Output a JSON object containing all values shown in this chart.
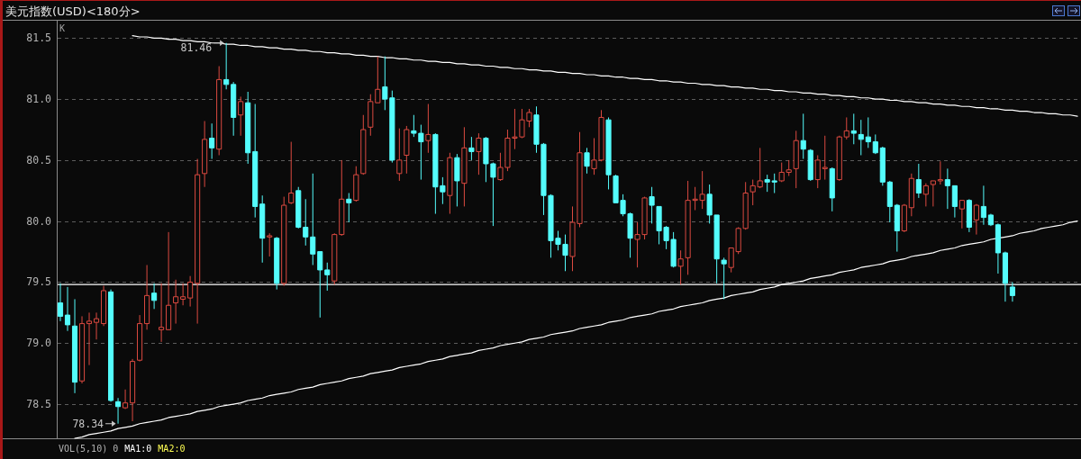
{
  "chart_data": {
    "type": "candlestick",
    "title": "美元指数(USD)<180分>",
    "annotations": [
      "K",
      {
        "text": "81.46",
        "y": 81.46
      },
      "78.34",
      "VOL(5,10) 0",
      "MA1:0",
      "MA2:0"
    ],
    "categories": [
      null,
      null,
      null,
      null,
      null,
      null,
      null,
      null,
      null,
      null,
      null,
      null,
      null,
      null,
      null,
      null,
      null,
      null,
      null,
      null,
      null,
      null,
      null,
      null,
      null,
      null,
      null,
      null,
      null,
      null,
      null,
      null,
      null,
      null,
      null,
      null,
      null,
      null,
      null,
      null,
      null,
      null,
      null,
      null,
      null,
      null,
      null,
      null,
      null,
      null,
      null,
      null,
      null,
      null,
      null,
      null,
      null,
      null,
      null,
      null,
      null,
      null,
      null,
      null,
      null,
      null,
      null,
      null,
      null,
      null,
      null,
      null,
      null,
      null,
      null,
      null,
      null,
      null,
      null,
      null,
      null,
      null,
      null,
      null,
      null,
      null,
      null,
      null,
      null,
      null,
      null,
      null,
      null,
      null,
      null,
      null,
      null,
      null,
      null,
      null,
      null,
      null,
      null,
      null,
      null,
      null,
      null,
      null,
      null,
      null,
      null,
      null,
      null,
      null,
      null,
      null,
      null,
      null,
      null,
      null,
      null,
      null,
      null,
      null,
      null,
      null,
      null,
      null,
      null,
      null,
      null,
      null,
      null,
      null,
      null,
      null,
      null,
      null,
      null,
      null,
      null,
      null
    ],
    "ohlc": [
      [
        79.33,
        79.49,
        79.18,
        79.22
      ],
      [
        79.23,
        79.46,
        79.1,
        79.15
      ],
      [
        79.14,
        79.36,
        78.59,
        78.68
      ],
      [
        78.69,
        79.22,
        78.67,
        79.16
      ],
      [
        79.16,
        79.25,
        78.82,
        79.18
      ],
      [
        79.17,
        79.25,
        79.03,
        79.2
      ],
      [
        79.16,
        79.47,
        79.14,
        79.43
      ],
      [
        79.42,
        79.44,
        78.52,
        78.53
      ],
      [
        78.52,
        78.55,
        78.34,
        78.48
      ],
      [
        78.47,
        78.62,
        78.46,
        78.51
      ],
      [
        78.51,
        78.87,
        78.36,
        78.85
      ],
      [
        78.86,
        79.23,
        78.85,
        79.16
      ],
      [
        79.16,
        79.64,
        79.11,
        79.39
      ],
      [
        79.41,
        79.49,
        79.28,
        79.35
      ],
      [
        79.11,
        79.49,
        79.01,
        79.13
      ],
      [
        79.11,
        79.91,
        79.11,
        79.31
      ],
      [
        79.33,
        79.52,
        79.16,
        79.38
      ],
      [
        79.36,
        79.49,
        79.31,
        79.38
      ],
      [
        79.37,
        79.55,
        79.3,
        79.5
      ],
      [
        79.49,
        80.51,
        79.16,
        80.38
      ],
      [
        80.39,
        80.82,
        80.28,
        80.67
      ],
      [
        80.68,
        80.8,
        80.51,
        80.6
      ],
      [
        80.59,
        81.27,
        80.54,
        81.16
      ],
      [
        81.16,
        81.46,
        81.08,
        81.12
      ],
      [
        81.12,
        81.14,
        80.7,
        80.85
      ],
      [
        80.87,
        81.02,
        80.7,
        80.98
      ],
      [
        80.97,
        81.06,
        80.47,
        80.56
      ],
      [
        80.57,
        80.96,
        80.03,
        80.12
      ],
      [
        80.14,
        80.21,
        79.66,
        79.86
      ],
      [
        79.87,
        79.9,
        79.71,
        79.88
      ],
      [
        79.86,
        79.87,
        79.44,
        79.49
      ],
      [
        79.49,
        80.2,
        79.47,
        80.13
      ],
      [
        80.15,
        80.65,
        80.14,
        80.23
      ],
      [
        80.25,
        80.28,
        79.94,
        79.95
      ],
      [
        79.95,
        80.18,
        79.8,
        79.87
      ],
      [
        79.87,
        80.39,
        79.64,
        79.73
      ],
      [
        79.75,
        79.75,
        79.21,
        79.6
      ],
      [
        79.6,
        79.66,
        79.43,
        79.56
      ],
      [
        79.51,
        79.9,
        79.48,
        79.89
      ],
      [
        79.89,
        80.5,
        79.88,
        80.18
      ],
      [
        80.18,
        80.23,
        79.99,
        80.15
      ],
      [
        80.17,
        80.45,
        80.16,
        80.38
      ],
      [
        80.39,
        80.87,
        80.38,
        80.75
      ],
      [
        80.77,
        81.04,
        80.7,
        80.98
      ],
      [
        80.97,
        81.35,
        80.97,
        81.08
      ],
      [
        81.1,
        81.35,
        80.91,
        81.0
      ],
      [
        81.01,
        81.07,
        80.48,
        80.5
      ],
      [
        80.39,
        80.76,
        80.33,
        80.5
      ],
      [
        80.54,
        80.78,
        80.39,
        80.75
      ],
      [
        80.74,
        80.87,
        80.69,
        80.72
      ],
      [
        80.72,
        80.79,
        80.34,
        80.65
      ],
      [
        80.66,
        80.96,
        80.56,
        80.71
      ],
      [
        80.71,
        80.72,
        80.06,
        80.28
      ],
      [
        80.29,
        80.36,
        80.14,
        80.24
      ],
      [
        80.21,
        80.56,
        80.06,
        80.52
      ],
      [
        80.52,
        80.55,
        80.12,
        80.33
      ],
      [
        80.31,
        80.77,
        80.12,
        80.6
      ],
      [
        80.6,
        80.69,
        80.5,
        80.57
      ],
      [
        80.57,
        80.72,
        80.38,
        80.68
      ],
      [
        80.68,
        80.69,
        80.32,
        80.47
      ],
      [
        80.47,
        80.48,
        79.96,
        80.36
      ],
      [
        80.34,
        80.56,
        80.33,
        80.44
      ],
      [
        80.44,
        80.75,
        80.41,
        80.68
      ],
      [
        80.68,
        80.92,
        80.59,
        80.69
      ],
      [
        80.69,
        80.92,
        80.68,
        80.83
      ],
      [
        80.82,
        80.92,
        80.77,
        80.89
      ],
      [
        80.87,
        80.94,
        80.56,
        80.63
      ],
      [
        80.63,
        80.64,
        80.05,
        80.21
      ],
      [
        80.21,
        80.22,
        79.7,
        79.84
      ],
      [
        79.86,
        79.92,
        79.76,
        79.81
      ],
      [
        79.81,
        79.89,
        79.59,
        79.72
      ],
      [
        79.71,
        80.12,
        79.59,
        79.99
      ],
      [
        79.98,
        80.73,
        79.95,
        80.56
      ],
      [
        80.56,
        80.6,
        80.39,
        80.45
      ],
      [
        80.43,
        80.68,
        80.38,
        80.5
      ],
      [
        80.5,
        80.91,
        80.49,
        80.85
      ],
      [
        80.83,
        80.85,
        80.26,
        80.38
      ],
      [
        80.37,
        80.38,
        80.15,
        80.15
      ],
      [
        80.17,
        80.22,
        80.04,
        80.06
      ],
      [
        80.06,
        80.07,
        79.7,
        79.86
      ],
      [
        79.85,
        79.99,
        79.62,
        79.89
      ],
      [
        79.89,
        80.2,
        79.85,
        80.19
      ],
      [
        80.2,
        80.28,
        79.98,
        80.13
      ],
      [
        80.12,
        80.12,
        79.81,
        79.92
      ],
      [
        79.95,
        79.96,
        79.77,
        79.84
      ],
      [
        79.85,
        79.91,
        79.62,
        79.63
      ],
      [
        79.63,
        79.76,
        79.48,
        79.69
      ],
      [
        79.7,
        80.33,
        79.56,
        80.17
      ],
      [
        80.17,
        80.28,
        80.09,
        80.18
      ],
      [
        80.17,
        80.41,
        80.1,
        80.22
      ],
      [
        80.22,
        80.3,
        79.98,
        80.05
      ],
      [
        80.05,
        80.05,
        79.49,
        79.69
      ],
      [
        79.68,
        79.7,
        79.36,
        79.65
      ],
      [
        79.62,
        79.78,
        79.58,
        79.78
      ],
      [
        79.75,
        79.95,
        79.73,
        79.94
      ],
      [
        79.94,
        80.32,
        79.93,
        80.23
      ],
      [
        80.24,
        80.34,
        80.13,
        80.29
      ],
      [
        80.28,
        80.6,
        80.27,
        80.33
      ],
      [
        80.34,
        80.38,
        80.24,
        80.32
      ],
      [
        80.33,
        80.39,
        80.23,
        80.32
      ],
      [
        80.33,
        80.48,
        80.32,
        80.4
      ],
      [
        80.4,
        80.5,
        80.37,
        80.42
      ],
      [
        80.43,
        80.74,
        80.27,
        80.66
      ],
      [
        80.66,
        80.88,
        80.51,
        80.59
      ],
      [
        80.58,
        80.59,
        80.33,
        80.34
      ],
      [
        80.34,
        80.54,
        80.27,
        80.5
      ],
      [
        80.43,
        80.7,
        80.34,
        80.44
      ],
      [
        80.43,
        80.44,
        80.08,
        80.19
      ],
      [
        80.34,
        80.7,
        80.33,
        80.69
      ],
      [
        80.69,
        80.85,
        80.67,
        80.74
      ],
      [
        80.74,
        80.88,
        80.63,
        80.72
      ],
      [
        80.71,
        80.83,
        80.54,
        80.67
      ],
      [
        80.69,
        80.85,
        80.6,
        80.65
      ],
      [
        80.65,
        80.71,
        80.55,
        80.56
      ],
      [
        80.6,
        80.61,
        80.29,
        80.32
      ],
      [
        80.32,
        80.33,
        79.99,
        80.12
      ],
      [
        80.13,
        80.14,
        79.75,
        79.92
      ],
      [
        79.92,
        80.14,
        79.91,
        80.13
      ],
      [
        80.11,
        80.39,
        80.04,
        80.35
      ],
      [
        80.34,
        80.47,
        80.19,
        80.23
      ],
      [
        80.22,
        80.31,
        80.12,
        80.29
      ],
      [
        80.3,
        80.33,
        80.12,
        80.33
      ],
      [
        80.33,
        80.49,
        80.3,
        80.34
      ],
      [
        80.34,
        80.43,
        80.1,
        80.29
      ],
      [
        80.29,
        80.29,
        80.03,
        80.12
      ],
      [
        80.1,
        80.17,
        79.94,
        80.17
      ],
      [
        80.17,
        80.18,
        79.91,
        79.95
      ],
      [
        80.01,
        80.14,
        79.89,
        80.13
      ],
      [
        80.12,
        80.29,
        79.97,
        80.03
      ],
      [
        80.05,
        80.06,
        79.96,
        79.97
      ],
      [
        79.97,
        79.98,
        79.57,
        79.74
      ],
      [
        79.74,
        79.75,
        79.34,
        79.49
      ],
      [
        79.46,
        79.5,
        79.34,
        79.39
      ],
      null,
      null,
      null,
      null,
      null,
      null,
      null,
      null,
      null
    ],
    "colors": [
      "#54fcfc",
      "#54fcfc",
      "#54fcfc",
      "#dc4a40",
      "#dc4a40",
      "#dc4a40",
      "#dc4a40",
      "#54fcfc",
      "#54fcfc",
      "#dc4a40",
      "#dc4a40",
      "#dc4a40",
      "#dc4a40",
      "#54fcfc",
      "#dc4a40",
      "#dc4a40",
      "#dc4a40",
      "#dc4a40",
      "#dc4a40",
      "#dc4a40",
      "#dc4a40",
      "#54fcfc",
      "#dc4a40",
      "#54fcfc",
      "#54fcfc",
      "#dc4a40",
      "#54fcfc",
      "#54fcfc",
      "#54fcfc",
      "#dc4a40",
      "#54fcfc",
      "#dc4a40",
      "#dc4a40",
      "#54fcfc",
      "#54fcfc",
      "#54fcfc",
      "#54fcfc",
      "#54fcfc",
      "#dc4a40",
      "#dc4a40",
      "#54fcfc",
      "#dc4a40",
      "#dc4a40",
      "#dc4a40",
      "#dc4a40",
      "#54fcfc",
      "#54fcfc",
      "#dc4a40",
      "#dc4a40",
      "#54fcfc",
      "#54fcfc",
      "#dc4a40",
      "#54fcfc",
      "#54fcfc",
      "#dc4a40",
      "#54fcfc",
      "#dc4a40",
      "#54fcfc",
      "#dc4a40",
      "#54fcfc",
      "#54fcfc",
      "#dc4a40",
      "#dc4a40",
      "#dc4a40",
      "#dc4a40",
      "#dc4a40",
      "#54fcfc",
      "#54fcfc",
      "#54fcfc",
      "#54fcfc",
      "#54fcfc",
      "#dc4a40",
      "#dc4a40",
      "#54fcfc",
      "#dc4a40",
      "#dc4a40",
      "#54fcfc",
      "#54fcfc",
      "#54fcfc",
      "#54fcfc",
      "#dc4a40",
      "#dc4a40",
      "#54fcfc",
      "#54fcfc",
      "#54fcfc",
      "#54fcfc",
      "#dc4a40",
      "#dc4a40",
      "#dc4a40",
      "#dc4a40",
      "#54fcfc",
      "#54fcfc",
      "#54fcfc",
      "#dc4a40",
      "#dc4a40",
      "#dc4a40",
      "#dc4a40",
      "#dc4a40",
      "#54fcfc",
      "#54fcfc",
      "#dc4a40",
      "#dc4a40",
      "#dc4a40",
      "#54fcfc",
      "#54fcfc",
      "#dc4a40",
      "#dc4a40",
      "#54fcfc",
      "#dc4a40",
      "#dc4a40",
      "#54fcfc",
      "#54fcfc",
      "#54fcfc",
      "#54fcfc",
      "#54fcfc",
      "#54fcfc",
      "#54fcfc",
      "#dc4a40",
      "#dc4a40",
      "#54fcfc",
      "#dc4a40",
      "#dc4a40",
      "#dc4a40",
      "#54fcfc",
      "#54fcfc",
      "#dc4a40",
      "#54fcfc",
      "#dc4a40",
      "#54fcfc",
      "#54fcfc",
      "#54fcfc",
      "#54fcfc",
      "#54fcfc",
      null,
      null,
      null,
      null,
      null,
      null,
      null,
      null,
      null
    ],
    "series": [
      {
        "type": "line",
        "color": "#ffffff",
        "values": [
          null,
          null,
          null,
          null,
          null,
          null,
          null,
          null,
          null,
          null,
          81.52,
          81.51,
          81.51,
          81.5,
          81.5,
          81.49,
          81.49,
          81.48,
          81.48,
          81.47,
          81.47,
          81.46,
          81.46,
          81.45,
          81.45,
          81.44,
          81.44,
          81.43,
          81.43,
          81.42,
          81.42,
          81.41,
          81.41,
          81.4,
          81.4,
          81.39,
          81.39,
          81.38,
          81.38,
          81.37,
          81.37,
          81.36,
          81.36,
          81.35,
          81.35,
          81.34,
          81.34,
          81.33,
          81.33,
          81.32,
          81.32,
          81.31,
          81.31,
          81.3,
          81.3,
          81.29,
          81.29,
          81.28,
          81.28,
          81.27,
          81.27,
          81.26,
          81.26,
          81.25,
          81.25,
          81.24,
          81.24,
          81.23,
          81.23,
          81.22,
          81.22,
          81.21,
          81.21,
          81.2,
          81.2,
          81.19,
          81.19,
          81.18,
          81.18,
          81.17,
          81.17,
          81.16,
          81.16,
          81.15,
          81.15,
          81.14,
          81.14,
          81.13,
          81.13,
          81.12,
          81.12,
          81.11,
          81.11,
          81.1,
          81.1,
          81.09,
          81.09,
          81.08,
          81.08,
          81.07,
          81.07,
          81.06,
          81.06,
          81.05,
          81.05,
          81.04,
          81.04,
          81.03,
          81.03,
          81.02,
          81.02,
          81.01,
          81.01,
          81.0,
          81.0,
          80.99,
          80.99,
          80.98,
          80.98,
          80.97,
          80.97,
          80.96,
          80.96,
          80.95,
          80.95,
          80.94,
          80.94,
          80.93,
          80.93,
          80.92,
          80.92,
          80.91,
          80.91,
          80.9,
          80.9,
          80.89,
          80.89,
          80.88,
          80.88,
          80.87,
          80.87,
          80.86
        ]
      },
      {
        "type": "line",
        "color": "#ffffff",
        "values": [
          null,
          null,
          78.22,
          78.23,
          78.25,
          78.26,
          78.27,
          78.28,
          78.3,
          78.31,
          78.32,
          78.34,
          78.35,
          78.36,
          78.37,
          78.39,
          78.4,
          78.41,
          78.42,
          78.44,
          78.45,
          78.46,
          78.48,
          78.49,
          78.5,
          78.51,
          78.53,
          78.54,
          78.55,
          78.57,
          78.58,
          78.59,
          78.6,
          78.62,
          78.63,
          78.64,
          78.66,
          78.67,
          78.68,
          78.69,
          78.71,
          78.72,
          78.73,
          78.75,
          78.76,
          78.77,
          78.78,
          78.8,
          78.81,
          78.82,
          78.83,
          78.85,
          78.86,
          78.87,
          78.89,
          78.9,
          78.91,
          78.92,
          78.94,
          78.95,
          78.96,
          78.98,
          78.99,
          79.0,
          79.01,
          79.03,
          79.04,
          79.05,
          79.07,
          79.08,
          79.09,
          79.1,
          79.12,
          79.13,
          79.14,
          79.15,
          79.17,
          79.18,
          79.19,
          79.21,
          79.22,
          79.23,
          79.24,
          79.26,
          79.27,
          79.28,
          79.3,
          79.31,
          79.32,
          79.33,
          79.35,
          79.36,
          79.37,
          79.39,
          79.4,
          79.41,
          79.42,
          79.44,
          79.45,
          79.46,
          79.48,
          79.49,
          79.5,
          79.51,
          79.53,
          79.54,
          79.55,
          79.56,
          79.58,
          79.59,
          79.6,
          79.62,
          79.63,
          79.64,
          79.65,
          79.67,
          79.68,
          79.69,
          79.71,
          79.72,
          79.73,
          79.74,
          79.76,
          79.77,
          79.78,
          79.8,
          79.81,
          79.82,
          79.83,
          79.85,
          79.86,
          79.87,
          79.88,
          79.9,
          79.91,
          79.92,
          79.94,
          79.95,
          79.96,
          79.97,
          79.99,
          80.0
        ]
      }
    ],
    "ylim": [
      78.22,
      81.65
    ],
    "yticks": [
      78.5,
      {
        "value": 79,
        "label": "79.0"
      },
      79.5,
      {
        "value": 80,
        "label": "80.0"
      },
      80.5,
      {
        "value": 81,
        "label": "81.0"
      },
      81.5
    ],
    "ref_lines": [
      {
        "axis": "y",
        "value": 79.48,
        "color": "#ffffff"
      }
    ],
    "grid": "y",
    "tick_labels": "y"
  }
}
